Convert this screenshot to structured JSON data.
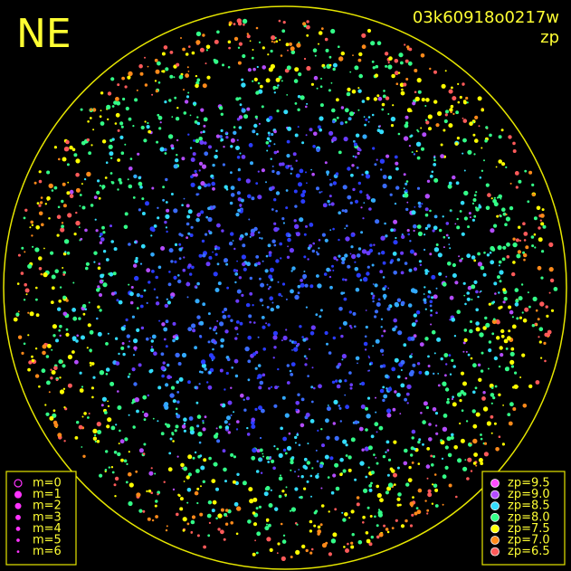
{
  "header": {
    "label": "NE",
    "image_id": "03k60918o0217w",
    "color_key": "zp"
  },
  "magnitude_legend": {
    "items": [
      "m=0",
      "m=1",
      "m=2",
      "m=3",
      "m=4",
      "m=5",
      "m=6"
    ]
  },
  "zp_legend": {
    "items": [
      {
        "label": "zp=9.5",
        "color": "#ff4cff"
      },
      {
        "label": "zp=9.0",
        "color": "#b44cff"
      },
      {
        "label": "zp=8.5",
        "color": "#33ddff"
      },
      {
        "label": "zp=8.0",
        "color": "#33ff88"
      },
      {
        "label": "zp=7.5",
        "color": "#ffff00"
      },
      {
        "label": "zp=7.0",
        "color": "#ff8a1a"
      },
      {
        "label": "zp=6.5",
        "color": "#ff5a5a"
      }
    ]
  }
}
